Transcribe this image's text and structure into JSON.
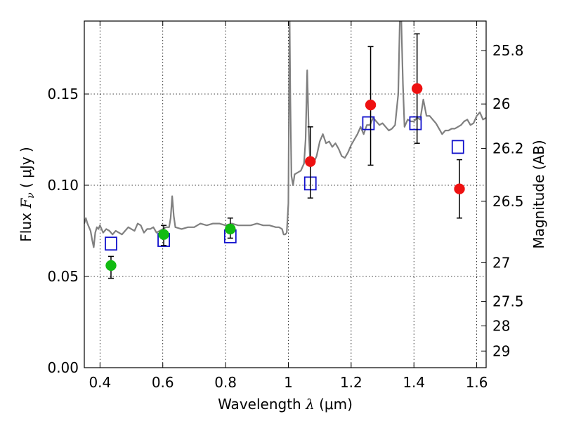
{
  "chart_data": {
    "type": "scatter",
    "xlabel": {
      "prefix": "Wavelength  ",
      "symbol": "λ",
      "units": " (μm)"
    },
    "ylabel": {
      "prefix": "Flux  ",
      "symbol": "F",
      "sub": "ν",
      "units": "  ( μJy )"
    },
    "ylabel_right": "Magnitude (AB)",
    "xlim": [
      0.35,
      1.63
    ],
    "ylim": [
      0.0,
      0.19
    ],
    "xticks": [
      0.4,
      0.6,
      0.8,
      1.0,
      1.2,
      1.4,
      1.6
    ],
    "xtick_labels": [
      "0.4",
      "0.6",
      "0.8",
      "1",
      "1.2",
      "1.4",
      "1.6"
    ],
    "yticks": [
      0.0,
      0.05,
      0.1,
      0.15
    ],
    "ytick_labels": [
      "0.00",
      "0.05",
      "0.10",
      "0.15"
    ],
    "right_ticks": [
      {
        "mag": 25.8,
        "label": "25.8"
      },
      {
        "mag": 26.0,
        "label": "26"
      },
      {
        "mag": 26.2,
        "label": "26.2"
      },
      {
        "mag": 26.5,
        "label": "26.5"
      },
      {
        "mag": 27.0,
        "label": "27"
      },
      {
        "mag": 27.5,
        "label": "27.5"
      },
      {
        "mag": 28.0,
        "label": "28"
      },
      {
        "mag": 29.0,
        "label": "29"
      }
    ],
    "grid": true,
    "colors": {
      "model": "#808080",
      "green": "#11bb11",
      "red": "#ee1111",
      "box": "#1111cc",
      "errorbar": "#000000"
    },
    "series": [
      {
        "kind": "line",
        "color": "#808080",
        "x": [
          0.35,
          0.355,
          0.36,
          0.365,
          0.37,
          0.375,
          0.38,
          0.385,
          0.39,
          0.395,
          0.4,
          0.41,
          0.42,
          0.43,
          0.44,
          0.45,
          0.46,
          0.47,
          0.48,
          0.49,
          0.5,
          0.51,
          0.52,
          0.53,
          0.54,
          0.55,
          0.56,
          0.57,
          0.58,
          0.59,
          0.6,
          0.61,
          0.62,
          0.625,
          0.63,
          0.635,
          0.64,
          0.66,
          0.68,
          0.7,
          0.72,
          0.74,
          0.76,
          0.78,
          0.8,
          0.82,
          0.84,
          0.86,
          0.88,
          0.9,
          0.92,
          0.94,
          0.96,
          0.97,
          0.98,
          0.985,
          0.99,
          0.995,
          1.0,
          1.002,
          1.004,
          1.006,
          1.01,
          1.015,
          1.02,
          1.03,
          1.04,
          1.05,
          1.055,
          1.06,
          1.065,
          1.07,
          1.08,
          1.09,
          1.1,
          1.11,
          1.12,
          1.13,
          1.14,
          1.15,
          1.16,
          1.17,
          1.18,
          1.19,
          1.2,
          1.21,
          1.22,
          1.23,
          1.24,
          1.25,
          1.26,
          1.27,
          1.28,
          1.29,
          1.3,
          1.31,
          1.32,
          1.33,
          1.34,
          1.35,
          1.355,
          1.36,
          1.365,
          1.37,
          1.38,
          1.39,
          1.4,
          1.41,
          1.42,
          1.43,
          1.44,
          1.45,
          1.46,
          1.47,
          1.48,
          1.49,
          1.5,
          1.51,
          1.52,
          1.53,
          1.54,
          1.55,
          1.56,
          1.57,
          1.58,
          1.59,
          1.6,
          1.61,
          1.62,
          1.63
        ],
        "y": [
          0.079,
          0.082,
          0.079,
          0.077,
          0.075,
          0.07,
          0.066,
          0.074,
          0.077,
          0.076,
          0.078,
          0.074,
          0.076,
          0.075,
          0.073,
          0.075,
          0.074,
          0.073,
          0.075,
          0.077,
          0.076,
          0.075,
          0.079,
          0.078,
          0.074,
          0.076,
          0.076,
          0.077,
          0.074,
          0.075,
          0.076,
          0.077,
          0.077,
          0.082,
          0.094,
          0.083,
          0.077,
          0.076,
          0.077,
          0.077,
          0.079,
          0.078,
          0.079,
          0.079,
          0.078,
          0.079,
          0.078,
          0.078,
          0.078,
          0.079,
          0.078,
          0.078,
          0.077,
          0.077,
          0.076,
          0.073,
          0.073,
          0.074,
          0.09,
          0.15,
          0.19,
          0.15,
          0.105,
          0.1,
          0.106,
          0.107,
          0.108,
          0.112,
          0.125,
          0.163,
          0.13,
          0.11,
          0.112,
          0.116,
          0.124,
          0.128,
          0.123,
          0.124,
          0.121,
          0.123,
          0.12,
          0.116,
          0.115,
          0.118,
          0.122,
          0.125,
          0.128,
          0.132,
          0.128,
          0.133,
          0.133,
          0.137,
          0.135,
          0.133,
          0.134,
          0.132,
          0.13,
          0.131,
          0.133,
          0.15,
          0.19,
          0.19,
          0.155,
          0.132,
          0.136,
          0.135,
          0.135,
          0.137,
          0.136,
          0.147,
          0.138,
          0.138,
          0.136,
          0.134,
          0.131,
          0.128,
          0.13,
          0.13,
          0.131,
          0.131,
          0.132,
          0.133,
          0.135,
          0.136,
          0.133,
          0.134,
          0.138,
          0.14,
          0.136,
          0.137
        ]
      },
      {
        "kind": "points",
        "marker": "square",
        "color": "#1111cc",
        "x": [
          0.435,
          0.603,
          0.815,
          1.07,
          1.255,
          1.405,
          1.54
        ],
        "y": [
          0.068,
          0.07,
          0.072,
          0.101,
          0.134,
          0.134,
          0.121
        ]
      },
      {
        "kind": "points",
        "marker": "circle",
        "color": "#11bb11",
        "x": [
          0.435,
          0.603,
          0.815
        ],
        "y": [
          0.056,
          0.073,
          0.076
        ],
        "yerr_low": [
          0.049,
          0.067,
          0.071
        ],
        "yerr_high": [
          0.061,
          0.078,
          0.082
        ]
      },
      {
        "kind": "points",
        "marker": "circle",
        "color": "#ee1111",
        "x": [
          1.07,
          1.262,
          1.41,
          1.545
        ],
        "y": [
          0.113,
          0.144,
          0.153,
          0.098
        ],
        "yerr_low": [
          0.093,
          0.111,
          0.123,
          0.082
        ],
        "yerr_high": [
          0.132,
          0.176,
          0.183,
          0.114
        ]
      }
    ]
  }
}
